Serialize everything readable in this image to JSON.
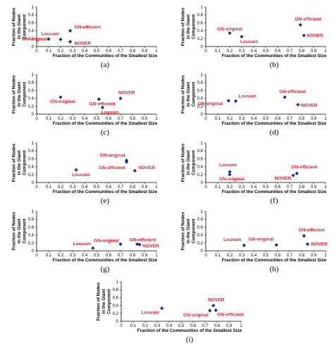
{
  "figure": {
    "point_color": "#1b2a8a",
    "label_color": "#e8192c"
  },
  "chart_data": [
    {
      "type": "scatter",
      "panel": "(a)",
      "xlabel": "Fraction of the Communities of the Smallest Size",
      "ylabel": "Fraction of Nodes in the Giant Component",
      "xlim": [
        0,
        1
      ],
      "ylim": [
        0,
        1
      ],
      "xticks": [
        "0",
        "0.1",
        "0.2",
        "0.3",
        "0.4",
        "0.5",
        "0.6",
        "0.7",
        "0.8",
        "0.9",
        "1"
      ],
      "yticks": [
        "0",
        "0.2",
        "0.4",
        "0.6",
        "0.8",
        "1"
      ],
      "points": [
        {
          "label": "GN-original",
          "x": 0.1,
          "y": 0.19
        },
        {
          "label": "Louvain",
          "x": 0.2,
          "y": 0.18
        },
        {
          "label": "GN-efficient",
          "x": 0.28,
          "y": 0.4
        },
        {
          "label": "NOVER",
          "x": 0.28,
          "y": 0.12
        }
      ]
    },
    {
      "type": "scatter",
      "panel": "(b)",
      "xlabel": "Fraction of the Communities of the Smallest Size",
      "ylabel": "Fraction of Nodes in the Giant Component",
      "xlim": [
        0,
        1
      ],
      "ylim": [
        0,
        1
      ],
      "xticks": [
        "0",
        "0.1",
        "0.2",
        "0.3",
        "0.4",
        "0.5",
        "0.6",
        "0.7",
        "0.8",
        "0.9",
        "1"
      ],
      "yticks": [
        "0",
        "0.2",
        "0.4",
        "0.6",
        "0.8",
        "1"
      ],
      "points": [
        {
          "label": "GN-original",
          "x": 0.2,
          "y": 0.34
        },
        {
          "label": "Louvain",
          "x": 0.3,
          "y": 0.25
        },
        {
          "label": "GN-efficient",
          "x": 0.79,
          "y": 0.55
        },
        {
          "label": "NOVER",
          "x": 0.82,
          "y": 0.28
        }
      ]
    },
    {
      "type": "scatter",
      "panel": "(c)",
      "xlabel": "Fraction of the Communities of the Smallest Size",
      "ylabel": "Fraction of Nodes in the Giant Component",
      "xlim": [
        0,
        1
      ],
      "ylim": [
        0,
        1
      ],
      "xticks": [
        "0",
        "0.1",
        "0.2",
        "0.3",
        "0.4",
        "0.5",
        "0.6",
        "0.7",
        "0.8",
        "0.9",
        "1"
      ],
      "yticks": [
        "0",
        "0.2",
        "0.4",
        "0.6",
        "0.8",
        "1"
      ],
      "points": [
        {
          "label": "GN-original",
          "x": 0.2,
          "y": 0.43
        },
        {
          "label": "GN-efficient",
          "x": 0.52,
          "y": 0.38
        },
        {
          "label": "Louvain",
          "x": 0.55,
          "y": 0.17
        },
        {
          "label": "NOVER",
          "x": 0.7,
          "y": 0.4
        }
      ]
    },
    {
      "type": "scatter",
      "panel": "(d)",
      "xlabel": "Fraction of the Communities of the Smallest Size",
      "ylabel": "Fraction of Nodes in the Giant Component",
      "xlim": [
        0,
        1
      ],
      "ylim": [
        0,
        1
      ],
      "xticks": [
        "0",
        "0.1",
        "0.2",
        "0.3",
        "0.4",
        "0.5",
        "0.6",
        "0.7",
        "0.8",
        "0.9",
        "1"
      ],
      "yticks": [
        "0",
        "0.2",
        "0.4",
        "0.6",
        "0.8",
        "1"
      ],
      "points": [
        {
          "label": "GN-original",
          "x": 0.19,
          "y": 0.34
        },
        {
          "label": "Louvain",
          "x": 0.25,
          "y": 0.33
        },
        {
          "label": "GN-efficient",
          "x": 0.66,
          "y": 0.43
        },
        {
          "label": "NOVER",
          "x": 0.77,
          "y": 0.24
        }
      ]
    },
    {
      "type": "scatter",
      "panel": "(e)",
      "xlabel": "Fraction of the Communities of the Smallest Size",
      "ylabel": "Fraction of Nodes in the Giant Component",
      "xlim": [
        0,
        1
      ],
      "ylim": [
        0,
        1
      ],
      "xticks": [
        "0",
        "0.1",
        "0.2",
        "0.3",
        "0.4",
        "0.5",
        "0.6",
        "0.7",
        "0.8",
        "0.9",
        "1"
      ],
      "yticks": [
        "0",
        "0.2",
        "0.4",
        "0.6",
        "0.8",
        "1"
      ],
      "points": [
        {
          "label": "Louvain",
          "x": 0.33,
          "y": 0.32
        },
        {
          "label": "GN-original",
          "x": 0.75,
          "y": 0.56
        },
        {
          "label": "GN-efficient",
          "x": 0.75,
          "y": 0.52
        },
        {
          "label": "NOVER",
          "x": 0.82,
          "y": 0.3
        }
      ]
    },
    {
      "type": "scatter",
      "panel": "(f)",
      "xlabel": "Fraction of the Communities of the Smallest Size",
      "ylabel": "Fraction of Nodes in the Giant Component",
      "xlim": [
        0,
        1
      ],
      "ylim": [
        0,
        1
      ],
      "xticks": [
        "0",
        "0.1",
        "0.2",
        "0.3",
        "0.4",
        "0.5",
        "0.6",
        "0.7",
        "0.8",
        "0.9",
        "1"
      ],
      "yticks": [
        "0",
        "0.2",
        "0.4",
        "0.6",
        "0.8",
        "1"
      ],
      "points": [
        {
          "label": "Louvain",
          "x": 0.2,
          "y": 0.27
        },
        {
          "label": "GN-original",
          "x": 0.2,
          "y": 0.2
        },
        {
          "label": "GN-efficient",
          "x": 0.76,
          "y": 0.23
        },
        {
          "label": "NOVER",
          "x": 0.73,
          "y": 0.18
        }
      ]
    },
    {
      "type": "scatter",
      "panel": "(g)",
      "xlabel": "Fraction of the Communities of the Smallest Size",
      "ylabel": "Fraction of Nodes in the Giant Component",
      "xlim": [
        0,
        1
      ],
      "ylim": [
        0,
        1
      ],
      "xticks": [
        "0",
        "0.1",
        "0.2",
        "0.3",
        "0.4",
        "0.5",
        "0.6",
        "0.7",
        "0.8",
        "0.9",
        "1"
      ],
      "yticks": [
        "0",
        "0.2",
        "0.4",
        "0.6",
        "0.8",
        "1"
      ],
      "points": [
        {
          "label": "Louvain",
          "x": 0.47,
          "y": 0.07
        },
        {
          "label": "GN-original",
          "x": 0.7,
          "y": 0.17
        },
        {
          "label": "GN-efficient",
          "x": 0.84,
          "y": 0.17
        },
        {
          "label": "NOVER",
          "x": 0.86,
          "y": 0.16
        }
      ]
    },
    {
      "type": "scatter",
      "panel": "(h)",
      "xlabel": "Fraction of the Communities of the Smallest Size",
      "ylabel": "Fraction of Nodes in the Giant Component",
      "xlim": [
        0,
        1
      ],
      "ylim": [
        0,
        1
      ],
      "xticks": [
        "0",
        "0.1",
        "0.2",
        "0.3",
        "0.4",
        "0.5",
        "0.6",
        "0.7",
        "0.8",
        "0.9",
        "1"
      ],
      "yticks": [
        "0",
        "0.2",
        "0.4",
        "0.6",
        "0.8",
        "1"
      ],
      "points": [
        {
          "label": "Louvain",
          "x": 0.32,
          "y": 0.14
        },
        {
          "label": "GN-original",
          "x": 0.59,
          "y": 0.15
        },
        {
          "label": "GN-efficient",
          "x": 0.82,
          "y": 0.38
        },
        {
          "label": "NOVER",
          "x": 0.85,
          "y": 0.17
        }
      ]
    },
    {
      "type": "scatter",
      "panel": "(i)",
      "xlabel": "Fraction of the Communities of the Smallest Size",
      "ylabel": "Fraction of Nodes in the Giant Component",
      "xlim": [
        0,
        1
      ],
      "ylim": [
        0,
        1
      ],
      "xticks": [
        "0",
        "0.1",
        "0.2",
        "0.3",
        "0.4",
        "0.5",
        "0.6",
        "0.7",
        "0.8",
        "0.9",
        "1"
      ],
      "yticks": [
        "0",
        "0.2",
        "0.4",
        "0.6",
        "0.8",
        "1"
      ],
      "points": [
        {
          "label": "Louvain",
          "x": 0.34,
          "y": 0.33
        },
        {
          "label": "NOVER",
          "x": 0.77,
          "y": 0.4
        },
        {
          "label": "GN-original",
          "x": 0.74,
          "y": 0.27
        },
        {
          "label": "GN-efficient",
          "x": 0.79,
          "y": 0.28
        }
      ]
    }
  ]
}
